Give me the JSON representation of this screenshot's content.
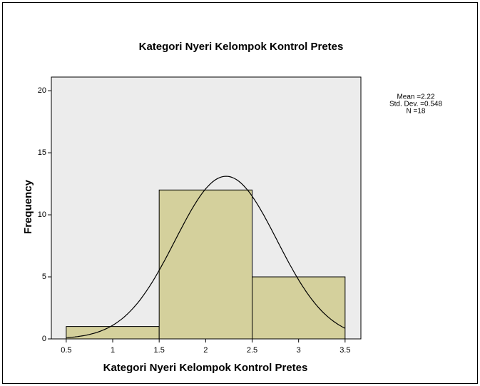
{
  "chart_data": {
    "type": "histogram",
    "title": "Kategori Nyeri Kelompok Kontrol Pretes",
    "xlabel": "Kategori Nyeri Kelompok Kontrol Pretes",
    "ylabel": "Frequency",
    "bins": [
      0.5,
      1.5,
      2.5,
      3.5
    ],
    "values": [
      1,
      12,
      5
    ],
    "color": "#d4d09c",
    "xlim": [
      0.34,
      3.67
    ],
    "xticks": [
      0.5,
      1,
      1.5,
      2,
      2.5,
      3,
      3.5
    ],
    "ylim": [
      0,
      21.1
    ],
    "yticks": [
      0,
      5,
      10,
      15,
      20
    ],
    "stats": [
      {
        "value": 2.22,
        "label": "Mean =2.22"
      },
      {
        "value": 0.548,
        "label": "Std. Dev. =0.548"
      },
      {
        "value": 18,
        "label": "N =18"
      }
    ]
  }
}
